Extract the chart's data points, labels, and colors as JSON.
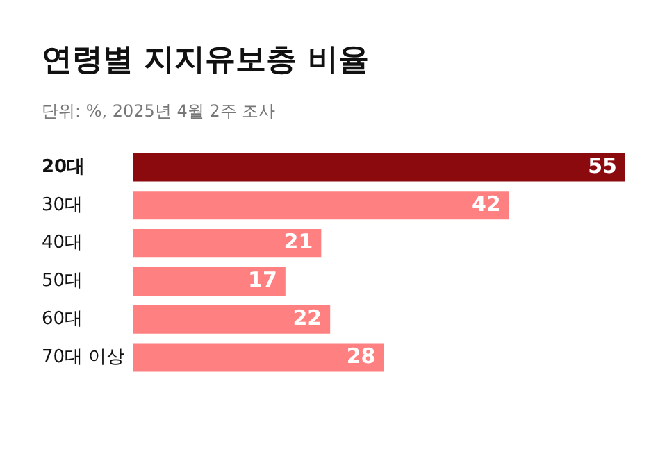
{
  "chart_data": {
    "type": "bar",
    "orientation": "horizontal",
    "title": "연령별 지지유보층 비율",
    "subtitle": "단위: %, 2025년 4월 2주 조사",
    "categories": [
      "20대",
      "30대",
      "40대",
      "50대",
      "60대",
      "70대 이상"
    ],
    "values": [
      55,
      42,
      21,
      17,
      22,
      28
    ],
    "colors": [
      "#8b0a0e",
      "#fe8081",
      "#fe8081",
      "#fe8081",
      "#fe8081",
      "#fe8081"
    ],
    "data_labels": true
  }
}
